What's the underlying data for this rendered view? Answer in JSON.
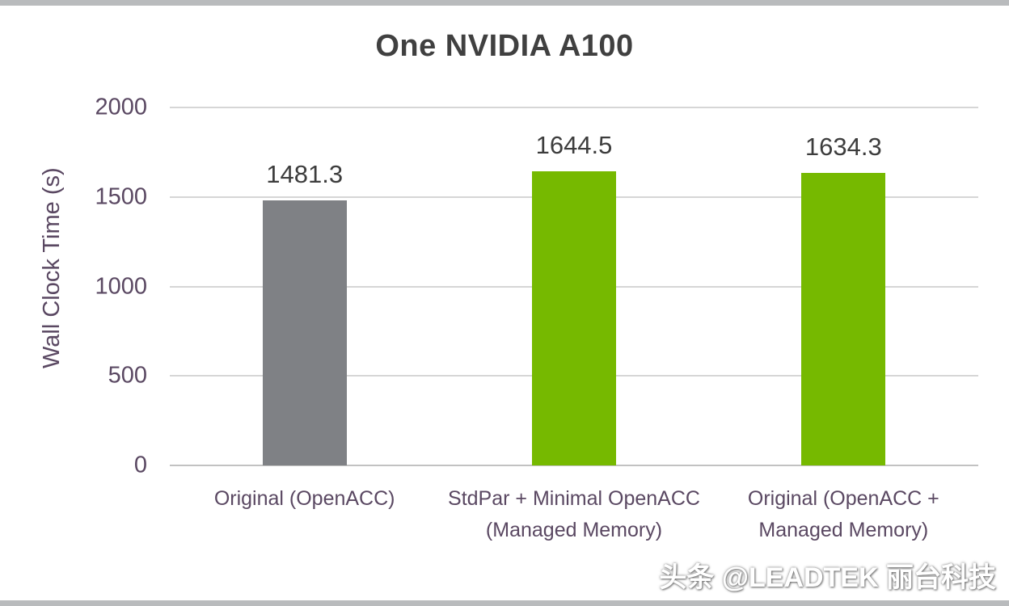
{
  "frame": {
    "watermark": "头条 @LEADTEK 丽台科技"
  },
  "chart_data": {
    "type": "bar",
    "title": "One NVIDIA A100",
    "xlabel": "",
    "ylabel": "Wall Clock Time (s)",
    "ylim": [
      0,
      2000
    ],
    "yticks": [
      0,
      500,
      1000,
      1500,
      2000
    ],
    "grid": true,
    "legend": "none",
    "categories": [
      "Original (OpenACC)",
      "StdPar + Minimal OpenACC (Managed Memory)",
      "Original (OpenACC + Managed Memory)"
    ],
    "values": [
      1481.3,
      1644.5,
      1634.3
    ],
    "value_labels": [
      "1481.3",
      "1644.5",
      "1634.3"
    ],
    "bar_colors": [
      "#7f8185",
      "#76b900",
      "#76b900"
    ],
    "gridline_color": "#d6d6d6"
  }
}
